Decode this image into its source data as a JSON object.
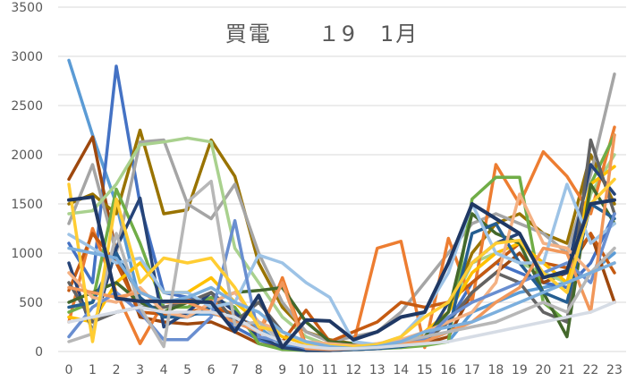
{
  "chart_data": {
    "type": "line",
    "title": "買電　　１9　1月",
    "xlabel": "",
    "ylabel": "",
    "x": [
      0,
      1,
      2,
      3,
      4,
      5,
      6,
      7,
      8,
      9,
      10,
      11,
      12,
      13,
      14,
      15,
      16,
      17,
      18,
      19,
      20,
      21,
      22,
      23
    ],
    "ylim": [
      0,
      3500
    ],
    "yticks": [
      0,
      500,
      1000,
      1500,
      2000,
      2500,
      3000,
      3500
    ],
    "grid": "horizontal",
    "legend": "none",
    "series": [
      {
        "color": "#5b9bd5",
        "values": [
          2960,
          2200,
          1500,
          500,
          400,
          380,
          380,
          350,
          250,
          60,
          20,
          20,
          30,
          40,
          60,
          80,
          100,
          400,
          500,
          600,
          650,
          700,
          800,
          1000
        ]
      },
      {
        "color": "#4472c4",
        "values": [
          1100,
          700,
          2900,
          1500,
          600,
          550,
          500,
          250,
          120,
          40,
          20,
          20,
          30,
          40,
          60,
          120,
          300,
          700,
          900,
          800,
          700,
          650,
          900,
          1400
        ]
      },
      {
        "color": "#9e480e",
        "values": [
          1750,
          2180,
          1000,
          350,
          300,
          280,
          300,
          200,
          80,
          30,
          10,
          10,
          20,
          30,
          50,
          80,
          150,
          600,
          800,
          1000,
          700,
          800,
          1200,
          500
        ]
      },
      {
        "color": "#997300",
        "values": [
          1500,
          1600,
          1400,
          2250,
          1400,
          1440,
          2150,
          1780,
          900,
          450,
          200,
          120,
          80,
          60,
          80,
          150,
          400,
          1000,
          1300,
          1400,
          1200,
          1100,
          2000,
          1500
        ]
      },
      {
        "color": "#a5a5a5",
        "values": [
          1300,
          1900,
          1000,
          2130,
          2150,
          1500,
          1350,
          1700,
          1000,
          500,
          200,
          100,
          150,
          200,
          400,
          700,
          1000,
          1300,
          1400,
          1300,
          1200,
          1000,
          1800,
          2820
        ]
      },
      {
        "color": "#a9d18e",
        "values": [
          1400,
          1430,
          1700,
          2100,
          2130,
          2170,
          2130,
          1050,
          700,
          350,
          150,
          60,
          40,
          60,
          90,
          150,
          400,
          900,
          1000,
          900,
          800,
          700,
          1600,
          2000
        ]
      },
      {
        "color": "#ed7d31",
        "values": [
          300,
          1250,
          600,
          80,
          500,
          520,
          520,
          350,
          150,
          750,
          60,
          30,
          80,
          1050,
          1120,
          40,
          1150,
          500,
          1900,
          1500,
          2030,
          1780,
          1400,
          2280
        ]
      },
      {
        "color": "#c55a11",
        "values": [
          620,
          1200,
          900,
          400,
          380,
          400,
          450,
          380,
          200,
          100,
          420,
          100,
          200,
          300,
          500,
          450,
          500,
          700,
          900,
          1100,
          900,
          850,
          1200,
          800
        ]
      },
      {
        "color": "#70ad47",
        "values": [
          400,
          500,
          1650,
          1100,
          450,
          450,
          550,
          450,
          80,
          20,
          10,
          10,
          20,
          30,
          40,
          60,
          100,
          1550,
          1770,
          1770,
          500,
          300,
          1700,
          2200
        ]
      },
      {
        "color": "#ffc000",
        "values": [
          350,
          300,
          700,
          900,
          600,
          600,
          750,
          500,
          300,
          150,
          80,
          40,
          30,
          40,
          80,
          200,
          400,
          800,
          1000,
          1100,
          900,
          700,
          1700,
          1880
        ]
      },
      {
        "color": "#264478",
        "values": [
          900,
          200,
          1050,
          1560,
          250,
          400,
          600,
          400,
          150,
          40,
          10,
          10,
          20,
          30,
          50,
          90,
          500,
          900,
          1100,
          1200,
          750,
          800,
          1900,
          1600
        ]
      },
      {
        "color": "#636363",
        "values": [
          700,
          300,
          400,
          450,
          450,
          500,
          600,
          300,
          500,
          200,
          80,
          40,
          30,
          40,
          60,
          100,
          300,
          600,
          800,
          700,
          400,
          300,
          2150,
          1400
        ]
      },
      {
        "color": "#43682b",
        "values": [
          500,
          600,
          700,
          500,
          400,
          500,
          500,
          600,
          620,
          650,
          300,
          100,
          80,
          60,
          80,
          150,
          400,
          1400,
          1200,
          1100,
          600,
          150,
          1700,
          1300
        ]
      },
      {
        "color": "#255e91",
        "values": [
          450,
          500,
          1000,
          550,
          350,
          350,
          450,
          300,
          200,
          100,
          50,
          30,
          20,
          30,
          50,
          100,
          200,
          1200,
          1300,
          900,
          600,
          500,
          1500,
          1350
        ]
      },
      {
        "color": "#f4b183",
        "values": [
          800,
          550,
          500,
          650,
          400,
          350,
          500,
          600,
          300,
          200,
          100,
          80,
          60,
          80,
          120,
          200,
          300,
          400,
          700,
          1600,
          1100,
          1050,
          800,
          900
        ]
      },
      {
        "color": "#9dc3e6",
        "values": [
          1190,
          1050,
          900,
          950,
          600,
          600,
          450,
          500,
          980,
          900,
          700,
          550,
          100,
          70,
          150,
          400,
          800,
          1500,
          1000,
          900,
          900,
          1700,
          1100,
          1300
        ]
      },
      {
        "color": "#698ed0",
        "values": [
          150,
          450,
          600,
          400,
          120,
          120,
          350,
          1330,
          150,
          100,
          30,
          20,
          30,
          50,
          80,
          120,
          350,
          500,
          600,
          700,
          800,
          900,
          700,
          1400
        ]
      },
      {
        "color": "#f1975a",
        "values": [
          650,
          600,
          550,
          600,
          500,
          500,
          400,
          300,
          200,
          700,
          30,
          20,
          30,
          50,
          80,
          100,
          200,
          300,
          500,
          650,
          1050,
          1000,
          400,
          2200
        ]
      },
      {
        "color": "#b7b7b7",
        "values": [
          100,
          180,
          1200,
          450,
          50,
          1520,
          1730,
          270,
          300,
          100,
          50,
          30,
          40,
          60,
          100,
          150,
          200,
          250,
          300,
          400,
          500,
          400,
          800,
          1050
        ]
      },
      {
        "color": "#ffcd33",
        "values": [
          1700,
          100,
          1550,
          700,
          950,
          900,
          950,
          650,
          250,
          200,
          80,
          60,
          50,
          70,
          150,
          350,
          500,
          900,
          1100,
          1130,
          800,
          600,
          1500,
          1750
        ]
      },
      {
        "color": "#7cafdd",
        "values": [
          1050,
          1000,
          950,
          600,
          500,
          550,
          650,
          500,
          400,
          200,
          100,
          50,
          30,
          50,
          100,
          200,
          250,
          300,
          400,
          500,
          600,
          700,
          800,
          900
        ]
      },
      {
        "color": "#d6dce5",
        "values": [
          300,
          350,
          400,
          450,
          400,
          400,
          400,
          350,
          200,
          100,
          50,
          30,
          30,
          40,
          60,
          80,
          100,
          150,
          200,
          250,
          300,
          350,
          400,
          500
        ]
      },
      {
        "color": "#1f3864",
        "values": [
          1540,
          1570,
          540,
          510,
          510,
          510,
          500,
          200,
          570,
          40,
          320,
          310,
          120,
          200,
          350,
          400,
          900,
          1500,
          1350,
          1200,
          750,
          820,
          1500,
          1540
        ]
      }
    ]
  }
}
